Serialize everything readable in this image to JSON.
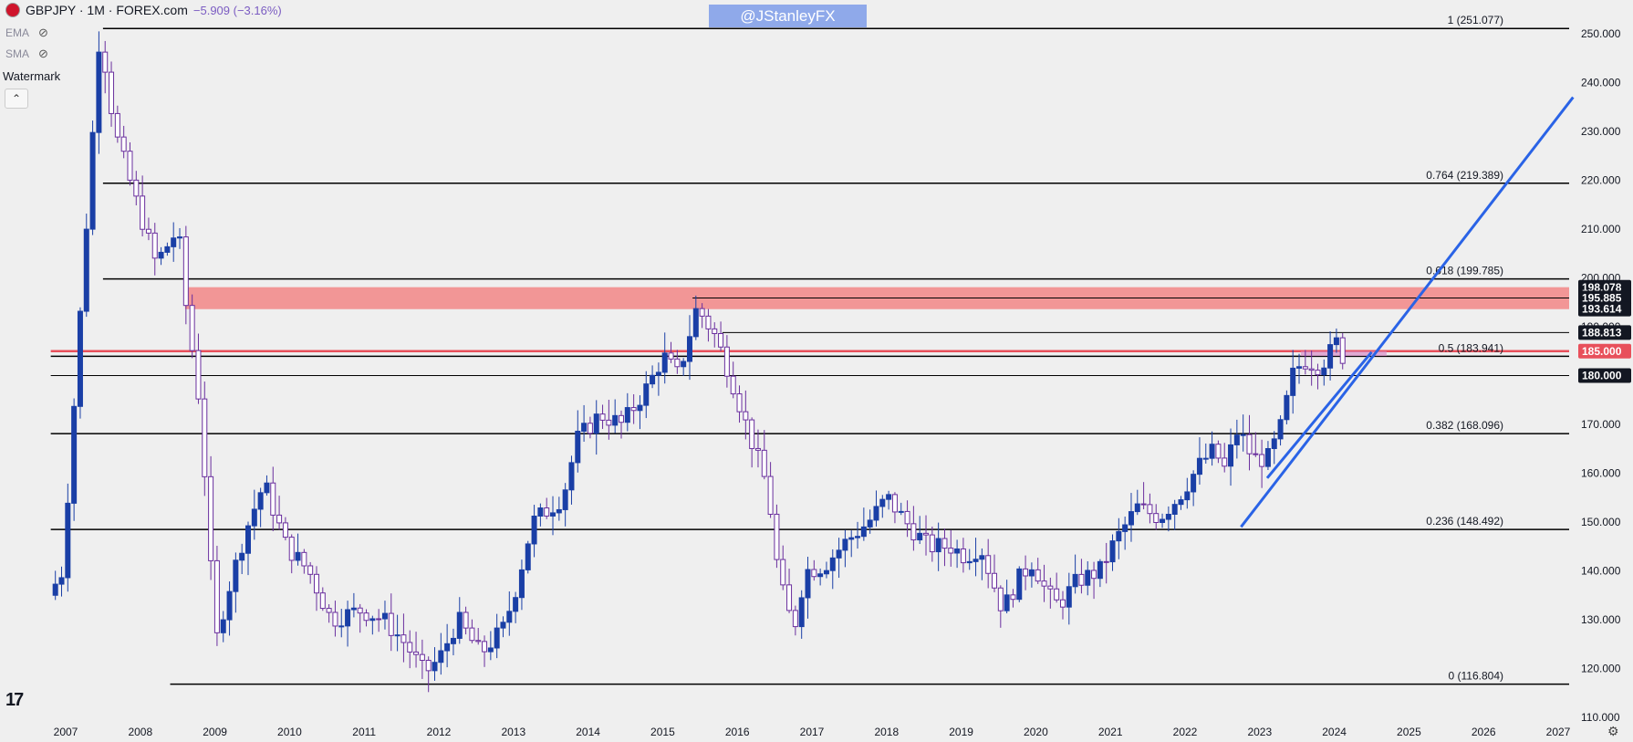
{
  "header": {
    "symbol": "GBPJPY · 1M · FOREX.com",
    "change": "−5.909 (−3.16%)",
    "indicators": [
      {
        "label": "EMA",
        "icon": "eye-hidden-icon"
      },
      {
        "label": "SMA",
        "icon": "eye-hidden-icon"
      }
    ],
    "watermark_label": "Watermark",
    "collapse_glyph": "⌃"
  },
  "watermark": "@JStanleyFX",
  "colors": {
    "background": "#efefef",
    "up_candle": "#1a3fa6",
    "down_candle": "#ffffff",
    "down_border": "#6a2f9e",
    "trendline": "#2a63e6",
    "zone": "#f28c8c",
    "red_line": "#e8505b",
    "level_line": "#000000"
  },
  "chart_data": {
    "type": "candlestick",
    "title": "GBPJPY · 1M · FOREX.com",
    "x_axis": {
      "ticks": [
        "2007",
        "2008",
        "2009",
        "2010",
        "2011",
        "2012",
        "2013",
        "2014",
        "2015",
        "2016",
        "2017",
        "2018",
        "2019",
        "2020",
        "2021",
        "2022",
        "2023",
        "2024",
        "2025",
        "2026",
        "2027"
      ]
    },
    "y_axis": {
      "range": [
        108,
        254
      ],
      "ticks": [
        "250.000",
        "240.000",
        "230.000",
        "220.000",
        "210.000",
        "200.000",
        "190.000",
        "180.000",
        "170.000",
        "160.000",
        "150.000",
        "140.000",
        "130.000",
        "120.000",
        "110.000"
      ]
    },
    "fib_levels": [
      {
        "label": "1 (251.077)",
        "value": 251.077,
        "from_year": 2007.5
      },
      {
        "label": "0.764 (219.389)",
        "value": 219.389,
        "from_year": 2007.5
      },
      {
        "label": "0.618 (199.785)",
        "value": 199.785,
        "from_year": 2007.5
      },
      {
        "label": "0.5 (183.941)",
        "value": 183.941,
        "from_year": 2006.8
      },
      {
        "label": "0.382 (168.096)",
        "value": 168.096,
        "from_year": 2006.8
      },
      {
        "label": "0.236 (148.492)",
        "value": 148.492,
        "from_year": 2006.8
      },
      {
        "label": "0 (116.804)",
        "value": 116.804,
        "from_year": 2008.4
      }
    ],
    "price_labels": [
      {
        "text": "198.078",
        "value": 198.078,
        "style": "dark"
      },
      {
        "text": "195.885",
        "value": 195.885,
        "style": "dark"
      },
      {
        "text": "193.614",
        "value": 193.614,
        "style": "dark"
      },
      {
        "text": "188.813",
        "value": 188.813,
        "style": "dark"
      },
      {
        "text": "185.000",
        "value": 185.0,
        "style": "red"
      },
      {
        "text": "180.000",
        "value": 180.0,
        "style": "dark"
      }
    ],
    "resistance_zone": {
      "from_year": 2008.6,
      "low": 193.6,
      "high": 198.1
    },
    "horizontal_lines": [
      {
        "value": 195.885,
        "from_year": 2015.4
      },
      {
        "value": 188.813,
        "from_year": 2015.8
      },
      {
        "value": 180.0,
        "from_year": 2006.8
      },
      {
        "value": 185.0,
        "from_year": 2006.8,
        "color": "red"
      }
    ],
    "trendlines": [
      {
        "x1": 2022.75,
        "y1": 149.0,
        "x2": 2027.2,
        "y2": 237.0
      },
      {
        "x1": 2023.1,
        "y1": 159.0,
        "x2": 2024.5,
        "y2": 184.8
      }
    ],
    "small_zone": {
      "from_year": 2023.55,
      "to_year": 2024.7,
      "low": 184.0,
      "high": 185.0
    },
    "anchors": [
      [
        2006.82,
        135
      ],
      [
        2007.0,
        140
      ],
      [
        2007.5,
        251
      ],
      [
        2007.7,
        230
      ],
      [
        2008.0,
        215
      ],
      [
        2008.25,
        203
      ],
      [
        2008.55,
        210
      ],
      [
        2008.62,
        198
      ],
      [
        2008.85,
        173
      ],
      [
        2009.05,
        125
      ],
      [
        2009.2,
        135
      ],
      [
        2009.45,
        148
      ],
      [
        2009.7,
        158
      ],
      [
        2010.0,
        145
      ],
      [
        2010.3,
        140
      ],
      [
        2010.6,
        130
      ],
      [
        2011.0,
        132
      ],
      [
        2011.3,
        130
      ],
      [
        2011.6,
        125
      ],
      [
        2011.85,
        119
      ],
      [
        2012.05,
        122
      ],
      [
        2012.3,
        130
      ],
      [
        2012.6,
        123
      ],
      [
        2012.9,
        128
      ],
      [
        2013.05,
        135
      ],
      [
        2013.3,
        150
      ],
      [
        2013.7,
        155
      ],
      [
        2013.9,
        167
      ],
      [
        2014.2,
        172
      ],
      [
        2014.5,
        170
      ],
      [
        2014.85,
        178
      ],
      [
        2015.05,
        184
      ],
      [
        2015.25,
        180
      ],
      [
        2015.5,
        194
      ],
      [
        2015.75,
        188
      ],
      [
        2015.95,
        180
      ],
      [
        2016.2,
        168
      ],
      [
        2016.45,
        157
      ],
      [
        2016.6,
        138
      ],
      [
        2016.8,
        128
      ],
      [
        2016.95,
        140
      ],
      [
        2017.2,
        141
      ],
      [
        2017.5,
        146
      ],
      [
        2017.8,
        150
      ],
      [
        2018.05,
        155
      ],
      [
        2018.3,
        150
      ],
      [
        2018.6,
        145
      ],
      [
        2018.9,
        145
      ],
      [
        2019.1,
        143
      ],
      [
        2019.3,
        145
      ],
      [
        2019.6,
        132
      ],
      [
        2019.8,
        138
      ],
      [
        2020.0,
        142
      ],
      [
        2020.2,
        135
      ],
      [
        2020.35,
        133
      ],
      [
        2020.6,
        138
      ],
      [
        2020.9,
        140
      ],
      [
        2021.1,
        146
      ],
      [
        2021.4,
        153
      ],
      [
        2021.7,
        151
      ],
      [
        2021.95,
        155
      ],
      [
        2022.25,
        162
      ],
      [
        2022.45,
        165
      ],
      [
        2022.55,
        160
      ],
      [
        2022.75,
        169
      ],
      [
        2022.95,
        163
      ],
      [
        2023.15,
        163
      ],
      [
        2023.3,
        168
      ],
      [
        2023.5,
        181
      ],
      [
        2023.65,
        183
      ],
      [
        2023.85,
        182
      ],
      [
        2024.0,
        185
      ],
      [
        2024.05,
        185.8
      ],
      [
        2024.1,
        188
      ],
      [
        2024.13,
        184
      ]
    ]
  }
}
